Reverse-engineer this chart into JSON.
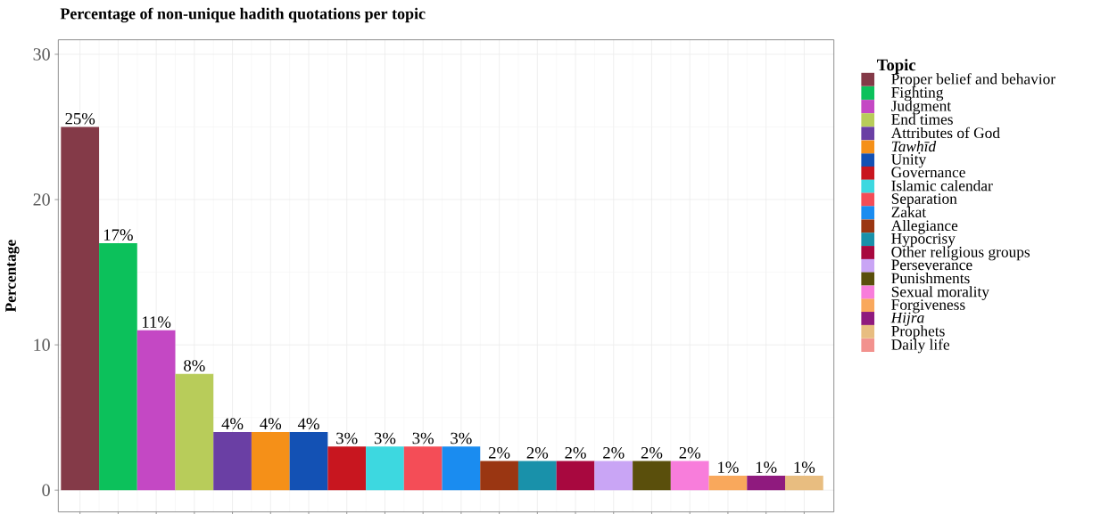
{
  "chart_data": {
    "type": "bar",
    "title": "Percentage of non-unique hadith quotations per topic",
    "ylabel": "Percentage",
    "legend_title": "Topic",
    "categories": [
      null,
      null,
      null,
      null,
      null,
      null,
      null,
      null,
      null,
      null,
      null,
      null,
      null,
      null,
      null,
      null,
      null,
      null,
      null,
      null
    ],
    "series": [
      {
        "name": "Proper belief and behavior",
        "color": "#843a48",
        "values": [
          25,
          null,
          null,
          null,
          null,
          null,
          null,
          null,
          null,
          null,
          null,
          null,
          null,
          null,
          null,
          null,
          null,
          null,
          null,
          null
        ],
        "value_labels": [
          "25%",
          null,
          null,
          null,
          null,
          null,
          null,
          null,
          null,
          null,
          null,
          null,
          null,
          null,
          null,
          null,
          null,
          null,
          null,
          null
        ]
      },
      {
        "name": "Fighting",
        "color": "#0cc15b",
        "values": [
          null,
          17,
          null,
          null,
          null,
          null,
          null,
          null,
          null,
          null,
          null,
          null,
          null,
          null,
          null,
          null,
          null,
          null,
          null,
          null
        ],
        "value_labels": [
          null,
          "17%",
          null,
          null,
          null,
          null,
          null,
          null,
          null,
          null,
          null,
          null,
          null,
          null,
          null,
          null,
          null,
          null,
          null,
          null
        ]
      },
      {
        "name": "Judgment",
        "color": "#c448c4",
        "values": [
          null,
          null,
          11,
          null,
          null,
          null,
          null,
          null,
          null,
          null,
          null,
          null,
          null,
          null,
          null,
          null,
          null,
          null,
          null,
          null
        ],
        "value_labels": [
          null,
          null,
          "11%",
          null,
          null,
          null,
          null,
          null,
          null,
          null,
          null,
          null,
          null,
          null,
          null,
          null,
          null,
          null,
          null,
          null
        ]
      },
      {
        "name": "End times",
        "color": "#b8cc5a",
        "values": [
          null,
          null,
          null,
          8,
          null,
          null,
          null,
          null,
          null,
          null,
          null,
          null,
          null,
          null,
          null,
          null,
          null,
          null,
          null,
          null
        ],
        "value_labels": [
          null,
          null,
          null,
          "8%",
          null,
          null,
          null,
          null,
          null,
          null,
          null,
          null,
          null,
          null,
          null,
          null,
          null,
          null,
          null,
          null
        ]
      },
      {
        "name": "Attributes of God",
        "color": "#6a3fa4",
        "values": [
          null,
          null,
          null,
          null,
          4,
          null,
          null,
          null,
          null,
          null,
          null,
          null,
          null,
          null,
          null,
          null,
          null,
          null,
          null,
          null
        ],
        "value_labels": [
          null,
          null,
          null,
          null,
          "4%",
          null,
          null,
          null,
          null,
          null,
          null,
          null,
          null,
          null,
          null,
          null,
          null,
          null,
          null,
          null
        ]
      },
      {
        "name": "*Tawḥīd*",
        "color": "#f59018",
        "values": [
          null,
          null,
          null,
          null,
          null,
          4,
          null,
          null,
          null,
          null,
          null,
          null,
          null,
          null,
          null,
          null,
          null,
          null,
          null,
          null
        ],
        "value_labels": [
          null,
          null,
          null,
          null,
          null,
          "4%",
          null,
          null,
          null,
          null,
          null,
          null,
          null,
          null,
          null,
          null,
          null,
          null,
          null,
          null
        ]
      },
      {
        "name": "Unity",
        "color": "#1351b4",
        "values": [
          null,
          null,
          null,
          null,
          null,
          null,
          4,
          null,
          null,
          null,
          null,
          null,
          null,
          null,
          null,
          null,
          null,
          null,
          null,
          null
        ],
        "value_labels": [
          null,
          null,
          null,
          null,
          null,
          null,
          "4%",
          null,
          null,
          null,
          null,
          null,
          null,
          null,
          null,
          null,
          null,
          null,
          null,
          null
        ]
      },
      {
        "name": "Governance",
        "color": "#c8161f",
        "values": [
          null,
          null,
          null,
          null,
          null,
          null,
          null,
          3,
          null,
          null,
          null,
          null,
          null,
          null,
          null,
          null,
          null,
          null,
          null,
          null
        ],
        "value_labels": [
          null,
          null,
          null,
          null,
          null,
          null,
          null,
          "3%",
          null,
          null,
          null,
          null,
          null,
          null,
          null,
          null,
          null,
          null,
          null,
          null
        ]
      },
      {
        "name": "Islamic calendar",
        "color": "#3dd8e0",
        "values": [
          null,
          null,
          null,
          null,
          null,
          null,
          null,
          null,
          3,
          null,
          null,
          null,
          null,
          null,
          null,
          null,
          null,
          null,
          null,
          null
        ],
        "value_labels": [
          null,
          null,
          null,
          null,
          null,
          null,
          null,
          null,
          "3%",
          null,
          null,
          null,
          null,
          null,
          null,
          null,
          null,
          null,
          null,
          null
        ]
      },
      {
        "name": "Separation",
        "color": "#f44d57",
        "values": [
          null,
          null,
          null,
          null,
          null,
          null,
          null,
          null,
          null,
          3,
          null,
          null,
          null,
          null,
          null,
          null,
          null,
          null,
          null,
          null
        ],
        "value_labels": [
          null,
          null,
          null,
          null,
          null,
          null,
          null,
          null,
          null,
          "3%",
          null,
          null,
          null,
          null,
          null,
          null,
          null,
          null,
          null,
          null
        ]
      },
      {
        "name": "Zakat",
        "color": "#1a8cf0",
        "values": [
          null,
          null,
          null,
          null,
          null,
          null,
          null,
          null,
          null,
          null,
          3,
          null,
          null,
          null,
          null,
          null,
          null,
          null,
          null,
          null
        ],
        "value_labels": [
          null,
          null,
          null,
          null,
          null,
          null,
          null,
          null,
          null,
          null,
          "3%",
          null,
          null,
          null,
          null,
          null,
          null,
          null,
          null,
          null
        ]
      },
      {
        "name": "Allegiance",
        "color": "#9a3612",
        "values": [
          null,
          null,
          null,
          null,
          null,
          null,
          null,
          null,
          null,
          null,
          null,
          2,
          null,
          null,
          null,
          null,
          null,
          null,
          null,
          null
        ],
        "value_labels": [
          null,
          null,
          null,
          null,
          null,
          null,
          null,
          null,
          null,
          null,
          null,
          "2%",
          null,
          null,
          null,
          null,
          null,
          null,
          null,
          null
        ]
      },
      {
        "name": "Hypocrisy",
        "color": "#1991aa",
        "values": [
          null,
          null,
          null,
          null,
          null,
          null,
          null,
          null,
          null,
          null,
          null,
          null,
          2,
          null,
          null,
          null,
          null,
          null,
          null,
          null
        ],
        "value_labels": [
          null,
          null,
          null,
          null,
          null,
          null,
          null,
          null,
          null,
          null,
          null,
          null,
          "2%",
          null,
          null,
          null,
          null,
          null,
          null,
          null
        ]
      },
      {
        "name": "Other religious groups",
        "color": "#a8083f",
        "values": [
          null,
          null,
          null,
          null,
          null,
          null,
          null,
          null,
          null,
          null,
          null,
          null,
          null,
          2,
          null,
          null,
          null,
          null,
          null,
          null
        ],
        "value_labels": [
          null,
          null,
          null,
          null,
          null,
          null,
          null,
          null,
          null,
          null,
          null,
          null,
          null,
          "2%",
          null,
          null,
          null,
          null,
          null,
          null
        ]
      },
      {
        "name": "Perseverance",
        "color": "#c9a5f5",
        "values": [
          null,
          null,
          null,
          null,
          null,
          null,
          null,
          null,
          null,
          null,
          null,
          null,
          null,
          null,
          2,
          null,
          null,
          null,
          null,
          null
        ],
        "value_labels": [
          null,
          null,
          null,
          null,
          null,
          null,
          null,
          null,
          null,
          null,
          null,
          null,
          null,
          null,
          "2%",
          null,
          null,
          null,
          null,
          null
        ]
      },
      {
        "name": "Punishments",
        "color": "#5a4f0c",
        "values": [
          null,
          null,
          null,
          null,
          null,
          null,
          null,
          null,
          null,
          null,
          null,
          null,
          null,
          null,
          null,
          2,
          null,
          null,
          null,
          null
        ],
        "value_labels": [
          null,
          null,
          null,
          null,
          null,
          null,
          null,
          null,
          null,
          null,
          null,
          null,
          null,
          null,
          null,
          "2%",
          null,
          null,
          null,
          null
        ]
      },
      {
        "name": "Sexual morality",
        "color": "#f87ddb",
        "values": [
          null,
          null,
          null,
          null,
          null,
          null,
          null,
          null,
          null,
          null,
          null,
          null,
          null,
          null,
          null,
          null,
          2,
          null,
          null,
          null
        ],
        "value_labels": [
          null,
          null,
          null,
          null,
          null,
          null,
          null,
          null,
          null,
          null,
          null,
          null,
          null,
          null,
          null,
          null,
          "2%",
          null,
          null,
          null
        ]
      },
      {
        "name": "Forgiveness",
        "color": "#f9a85c",
        "values": [
          null,
          null,
          null,
          null,
          null,
          null,
          null,
          null,
          null,
          null,
          null,
          null,
          null,
          null,
          null,
          null,
          null,
          1,
          null,
          null
        ],
        "value_labels": [
          null,
          null,
          null,
          null,
          null,
          null,
          null,
          null,
          null,
          null,
          null,
          null,
          null,
          null,
          null,
          null,
          null,
          "1%",
          null,
          null
        ]
      },
      {
        "name": "*Hijra*",
        "color": "#8f1a7e",
        "values": [
          null,
          null,
          null,
          null,
          null,
          null,
          null,
          null,
          null,
          null,
          null,
          null,
          null,
          null,
          null,
          null,
          null,
          null,
          1,
          null
        ],
        "value_labels": [
          null,
          null,
          null,
          null,
          null,
          null,
          null,
          null,
          null,
          null,
          null,
          null,
          null,
          null,
          null,
          null,
          null,
          null,
          "1%",
          null
        ]
      },
      {
        "name": "Prophets",
        "color": "#e8bd80",
        "values": [
          null,
          null,
          null,
          null,
          null,
          null,
          null,
          null,
          null,
          null,
          null,
          null,
          null,
          null,
          null,
          null,
          null,
          null,
          null,
          1
        ],
        "value_labels": [
          null,
          null,
          null,
          null,
          null,
          null,
          null,
          null,
          null,
          null,
          null,
          null,
          null,
          null,
          null,
          null,
          null,
          null,
          null,
          "1%"
        ]
      },
      {
        "name": "Daily life",
        "color": "#f2928e",
        "values": [
          null,
          null,
          null,
          null,
          null,
          null,
          null,
          null,
          null,
          null,
          null,
          null,
          null,
          null,
          null,
          null,
          null,
          null,
          null,
          null
        ]
      }
    ],
    "ylim": [
      -1.5,
      31
    ],
    "yticks": [
      0,
      10,
      20,
      30
    ],
    "grid": true,
    "legend": "right",
    "tick_labels": "y"
  }
}
